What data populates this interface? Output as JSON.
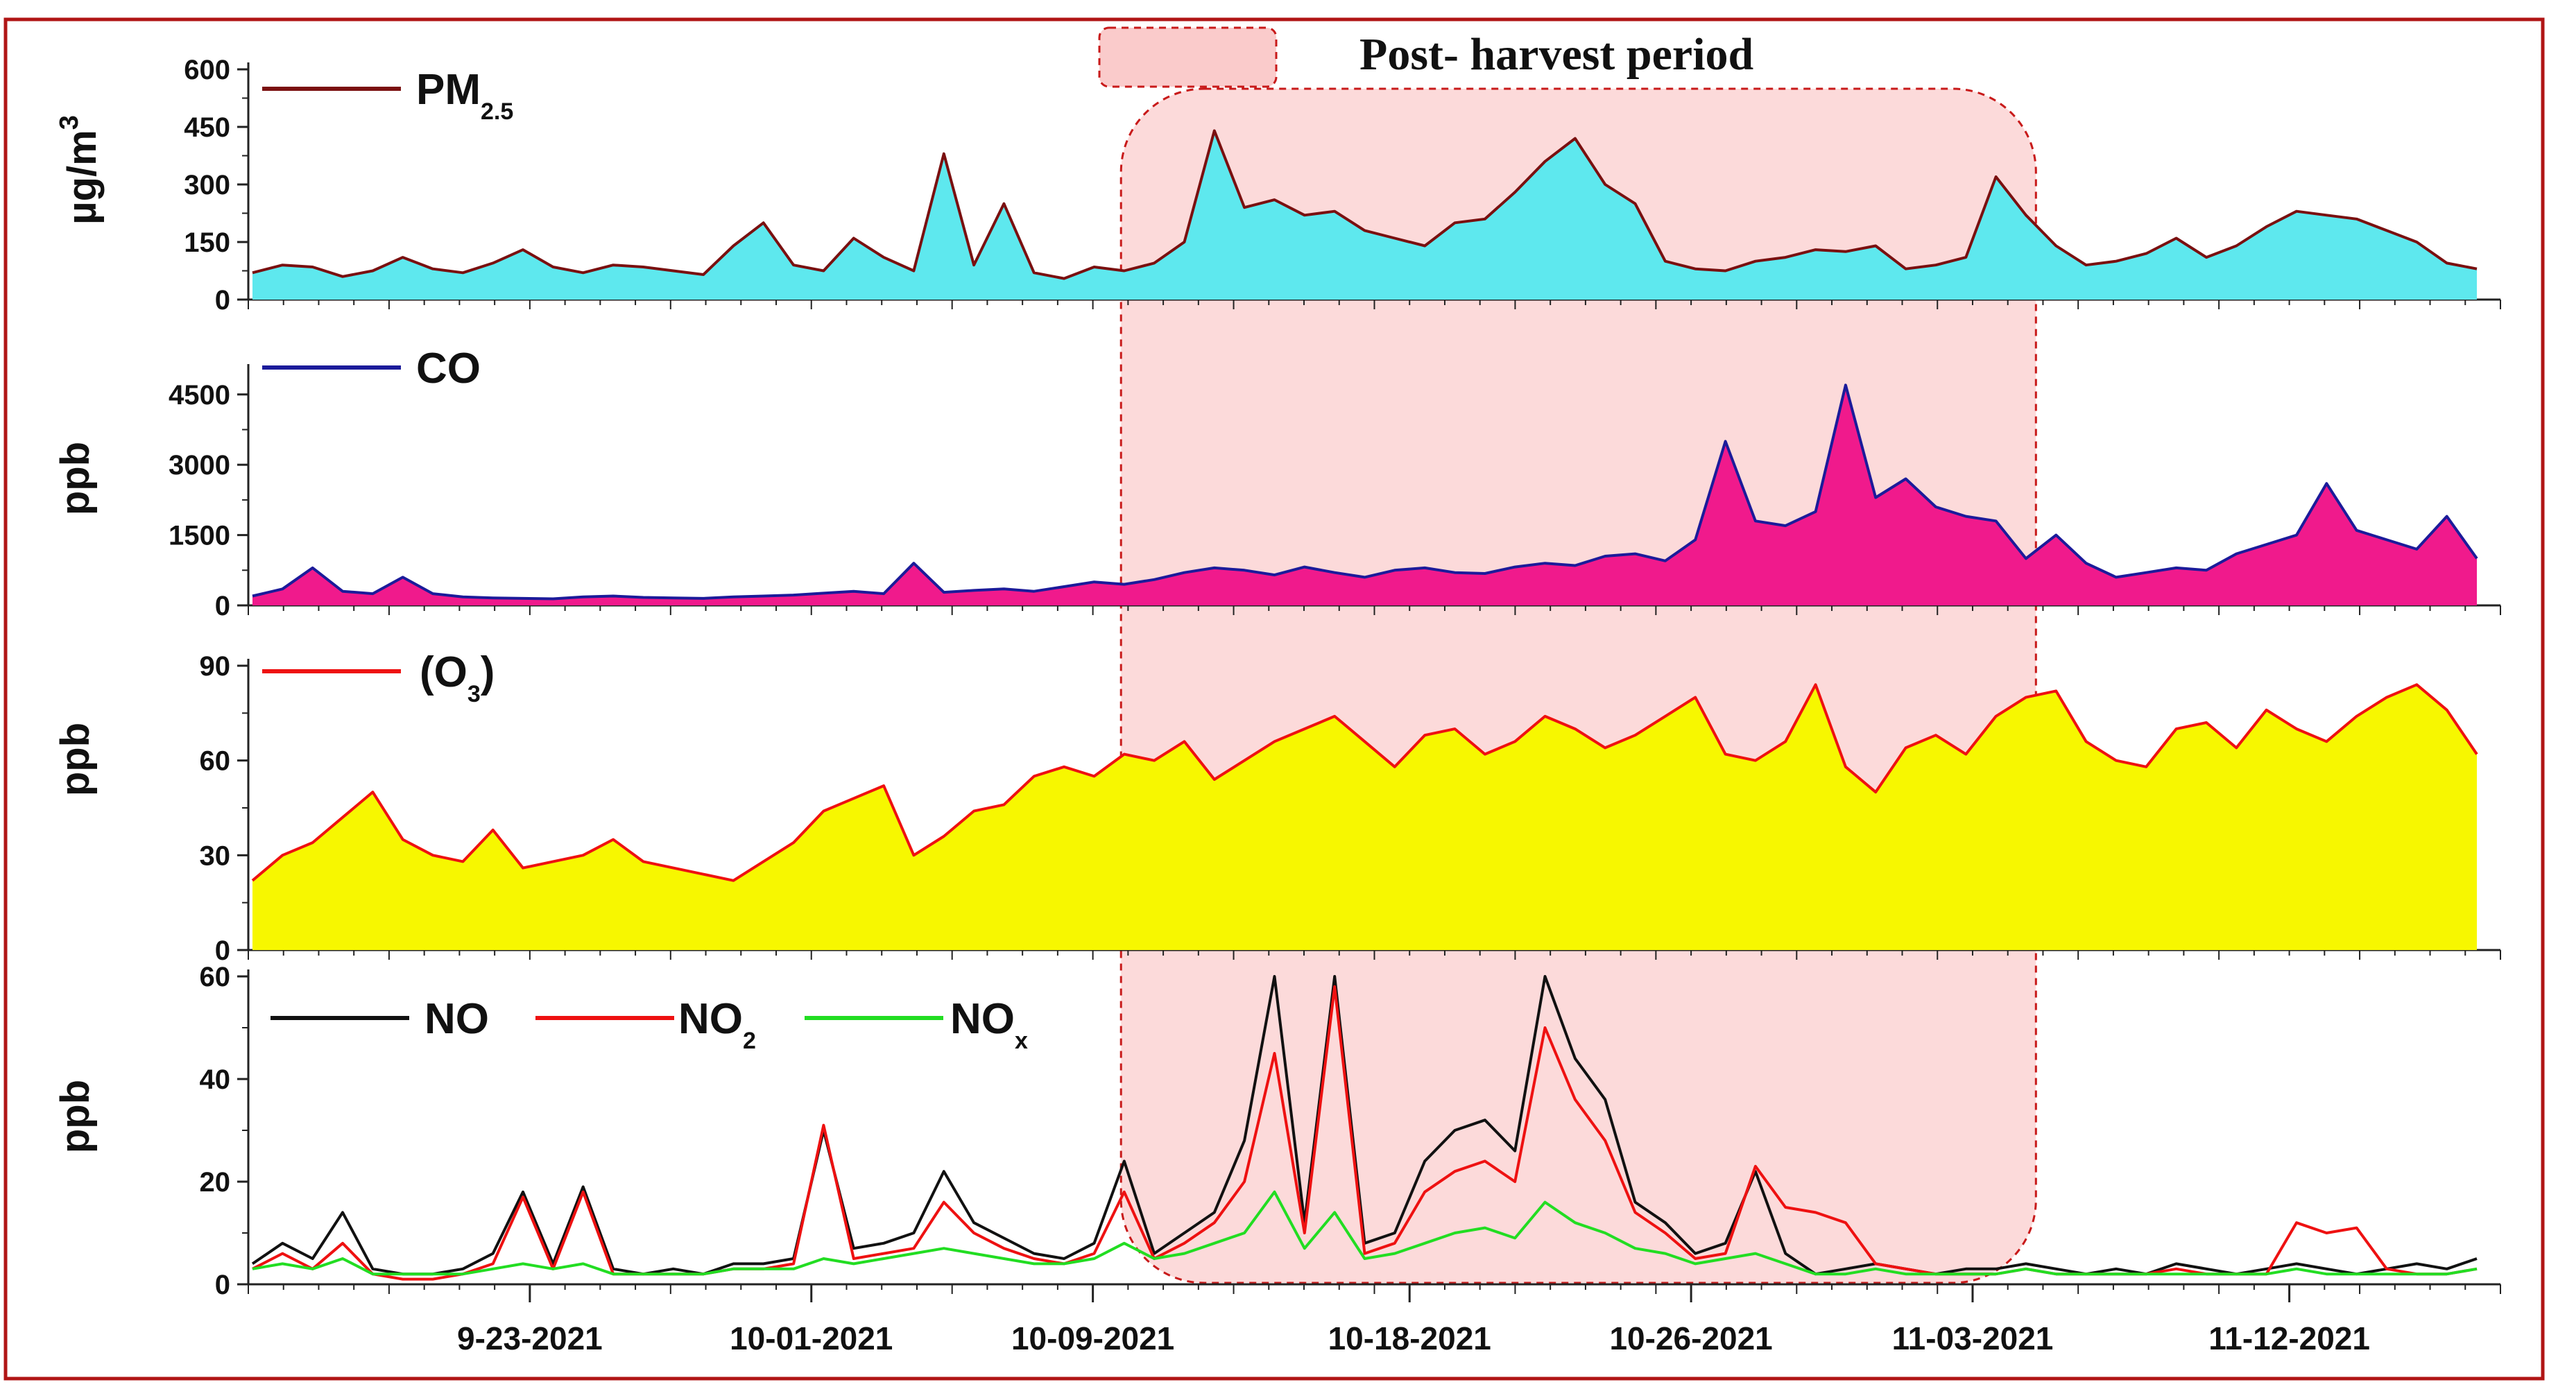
{
  "chart_data": {
    "type": "area",
    "time_range": [
      "09-15-2021",
      "11-17-2021"
    ],
    "x_tick_labels": [
      "9-23-2021",
      "10-01-2021",
      "10-09-2021",
      "10-18-2021",
      "10-26-2021",
      "11-03-2021",
      "11-12-2021"
    ],
    "x_tick_days": [
      8,
      16,
      24,
      33,
      41,
      49,
      58
    ],
    "shaded_region": {
      "label": "Post- harvest period",
      "start_day": 24.8,
      "end_day": 50.8
    },
    "panels": [
      {
        "ylabel": "µg/m",
        "ylabel_sup": "3",
        "yticks": [
          "600",
          "450",
          "300",
          "150",
          "0"
        ],
        "ytick_values": [
          600,
          450,
          300,
          150,
          0
        ],
        "ylim": [
          0,
          600
        ],
        "fill": "#5ee8ee",
        "series": [
          {
            "name": "PM",
            "sub": "2.5",
            "color": "#7a1010",
            "values": [
              70,
              90,
              85,
              60,
              75,
              110,
              80,
              70,
              95,
              130,
              85,
              70,
              90,
              85,
              75,
              65,
              140,
              200,
              90,
              75,
              160,
              110,
              75,
              380,
              90,
              250,
              70,
              55,
              85,
              75,
              95,
              150,
              440,
              240,
              260,
              220,
              230,
              180,
              160,
              140,
              200,
              210,
              280,
              360,
              420,
              300,
              250,
              100,
              80,
              75,
              100,
              110,
              130,
              125,
              140,
              80,
              90,
              110,
              320,
              220,
              140,
              90,
              100,
              120,
              160,
              110,
              140,
              190,
              230,
              220,
              210,
              180,
              150,
              95,
              80
            ]
          }
        ]
      },
      {
        "ylabel": "ppb",
        "yticks": [
          "4500",
          "3000",
          "1500",
          "0"
        ],
        "ytick_values": [
          4500,
          3000,
          1500,
          0
        ],
        "ylim": [
          0,
          5000
        ],
        "fill": "#f01a8c",
        "series": [
          {
            "name": "CO",
            "color": "#1b1b9a",
            "values": [
              200,
              350,
              800,
              300,
              250,
              600,
              250,
              180,
              160,
              150,
              140,
              180,
              200,
              170,
              160,
              150,
              180,
              200,
              220,
              260,
              300,
              250,
              900,
              280,
              320,
              350,
              300,
              400,
              500,
              450,
              550,
              700,
              800,
              750,
              650,
              820,
              700,
              600,
              750,
              800,
              700,
              680,
              820,
              900,
              850,
              1050,
              1100,
              950,
              1400,
              3500,
              1800,
              1700,
              2000,
              4700,
              2300,
              2700,
              2100,
              1900,
              1800,
              1000,
              1500,
              900,
              600,
              700,
              800,
              750,
              1100,
              1300,
              1500,
              2600,
              1600,
              1400,
              1200,
              1900,
              1000
            ]
          }
        ]
      },
      {
        "ylabel": "ppb",
        "yticks": [
          "90",
          "60",
          "30",
          "0"
        ],
        "ytick_values": [
          90,
          60,
          30,
          0
        ],
        "ylim": [
          0,
          90
        ],
        "fill": "#f7f700",
        "series": [
          {
            "name": "(O",
            "sub": "3",
            "close": ")",
            "color": "#ee1111",
            "values": [
              22,
              30,
              34,
              42,
              50,
              35,
              30,
              28,
              38,
              26,
              28,
              30,
              35,
              28,
              26,
              24,
              22,
              28,
              34,
              44,
              48,
              52,
              30,
              36,
              44,
              46,
              55,
              58,
              55,
              62,
              60,
              66,
              54,
              60,
              66,
              70,
              74,
              66,
              58,
              68,
              70,
              62,
              66,
              74,
              70,
              64,
              68,
              74,
              80,
              62,
              60,
              66,
              84,
              58,
              50,
              64,
              68,
              62,
              74,
              80,
              82,
              66,
              60,
              58,
              70,
              72,
              64,
              76,
              70,
              66,
              74,
              80,
              84,
              76,
              62
            ]
          }
        ]
      },
      {
        "ylabel": "ppb",
        "yticks": [
          "60",
          "40",
          "20",
          "0"
        ],
        "ytick_values": [
          60,
          40,
          20,
          0
        ],
        "ylim": [
          0,
          60
        ],
        "fill": "none",
        "series": [
          {
            "name": "NO",
            "color": "#111111",
            "values": [
              4,
              8,
              5,
              14,
              3,
              2,
              2,
              3,
              6,
              18,
              4,
              19,
              3,
              2,
              3,
              2,
              4,
              4,
              5,
              30,
              7,
              8,
              10,
              22,
              12,
              9,
              6,
              5,
              8,
              24,
              6,
              10,
              14,
              28,
              60,
              12,
              60,
              8,
              10,
              24,
              30,
              32,
              26,
              60,
              44,
              36,
              16,
              12,
              6,
              8,
              22,
              6,
              2,
              3,
              4,
              3,
              2,
              3,
              3,
              4,
              3,
              2,
              3,
              2,
              4,
              3,
              2,
              3,
              4,
              3,
              2,
              3,
              4,
              3,
              5
            ]
          },
          {
            "name": "NO",
            "sub": "2",
            "color": "#ee1111",
            "values": [
              3,
              6,
              3,
              8,
              2,
              1,
              1,
              2,
              4,
              17,
              3,
              18,
              2,
              2,
              2,
              2,
              3,
              3,
              4,
              31,
              5,
              6,
              7,
              16,
              10,
              7,
              5,
              4,
              6,
              18,
              5,
              8,
              12,
              20,
              45,
              10,
              58,
              6,
              8,
              18,
              22,
              24,
              20,
              50,
              36,
              28,
              14,
              10,
              5,
              6,
              23,
              15,
              14,
              12,
              4,
              3,
              2,
              2,
              2,
              3,
              2,
              2,
              2,
              2,
              3,
              2,
              2,
              2,
              12,
              10,
              11,
              3,
              2,
              2,
              3
            ]
          },
          {
            "name": "NO",
            "sub": "x",
            "color": "#22dd22",
            "values": [
              3,
              4,
              3,
              5,
              2,
              2,
              2,
              2,
              3,
              4,
              3,
              4,
              2,
              2,
              2,
              2,
              3,
              3,
              3,
              5,
              4,
              5,
              6,
              7,
              6,
              5,
              4,
              4,
              5,
              8,
              5,
              6,
              8,
              10,
              18,
              7,
              14,
              5,
              6,
              8,
              10,
              11,
              9,
              16,
              12,
              10,
              7,
              6,
              4,
              5,
              6,
              4,
              2,
              2,
              3,
              2,
              2,
              2,
              2,
              3,
              2,
              2,
              2,
              2,
              2,
              2,
              2,
              2,
              3,
              2,
              2,
              2,
              2,
              2,
              3
            ]
          }
        ]
      }
    ]
  }
}
